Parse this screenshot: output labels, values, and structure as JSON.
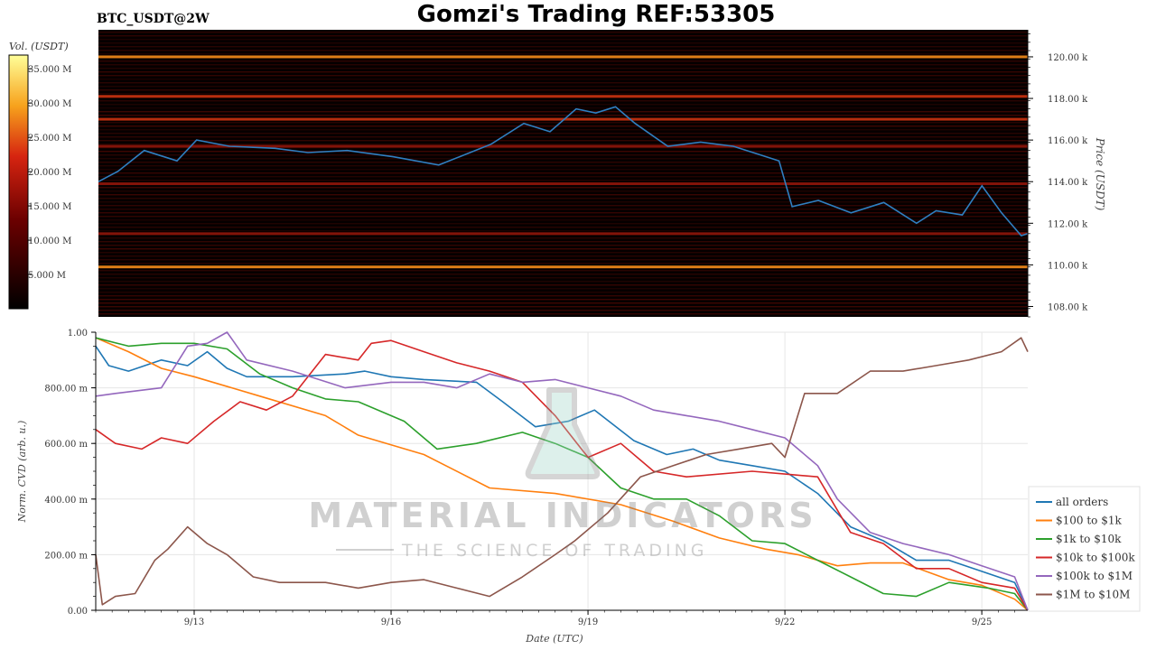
{
  "header": {
    "symbol": "BTC_USDT@2W",
    "title": "Gomzi's Trading REF:53305"
  },
  "colorbar": {
    "label": "Vol. (USDT)",
    "ticks": [
      "35.000 M",
      "30.000 M",
      "25.000 M",
      "20.000 M",
      "15.000 M",
      "10.000 M",
      "5.000 M"
    ],
    "tick_values": [
      35,
      30,
      25,
      20,
      15,
      10,
      5
    ],
    "range": [
      0,
      37
    ]
  },
  "watermark": {
    "line1": "MATERIAL INDICATORS",
    "line2": "THE SCIENCE OF TRADING"
  },
  "colors": {
    "price_line": "#2f7fc1",
    "heat_low": "#000000",
    "heat_mid": "#c1121f",
    "heat_high": "#ffff66"
  },
  "chart_data": [
    {
      "type": "heatmap",
      "title": "BTC_USDT@2W",
      "ylabel": "Price (USDT)",
      "y_ticks": [
        "120.00 k",
        "118.00 k",
        "116.00 k",
        "114.00 k",
        "112.00 k",
        "110.00 k",
        "108.00 k"
      ],
      "y_tick_values": [
        120000,
        118000,
        116000,
        114000,
        112000,
        110000,
        108000
      ],
      "ylim": [
        107500,
        121300
      ],
      "x_range": [
        "2025-09-11 12:00",
        "2025-09-25 18:00"
      ],
      "liquidity_bands": [
        {
          "price": 120000,
          "level": 0.75
        },
        {
          "price": 118100,
          "level": 0.45
        },
        {
          "price": 117000,
          "level": 0.35
        },
        {
          "price": 109900,
          "level": 0.65
        },
        {
          "price": 115700,
          "level": 0.25
        },
        {
          "price": 113900,
          "level": 0.2
        },
        {
          "price": 111500,
          "level": 0.22
        }
      ],
      "price_series": {
        "name": "price",
        "x": [
          0,
          0.3,
          0.7,
          1.2,
          1.5,
          2.0,
          2.7,
          3.2,
          3.8,
          4.5,
          5.2,
          6.0,
          6.5,
          6.9,
          7.3,
          7.6,
          7.9,
          8.2,
          8.7,
          9.2,
          9.7,
          10.1,
          10.4,
          10.6,
          11.0,
          11.5,
          12.0,
          12.5,
          12.8,
          13.2,
          13.5,
          13.8,
          14.1,
          14.2
        ],
        "y": [
          114000,
          114500,
          115500,
          115000,
          116000,
          115700,
          115600,
          115400,
          115500,
          115200,
          114800,
          115800,
          116800,
          116400,
          117500,
          117300,
          117600,
          116800,
          115700,
          115900,
          115700,
          115300,
          115000,
          112800,
          113100,
          112500,
          113000,
          112000,
          112600,
          112400,
          113800,
          112500,
          111400,
          111500
        ]
      }
    },
    {
      "type": "line",
      "xlabel": "Date (UTC)",
      "ylabel": "Norm. CVD (arb. u.)",
      "x_ticks": [
        "9/13",
        "9/16",
        "9/19",
        "9/22",
        "9/25"
      ],
      "x_tick_values": [
        1.5,
        4.5,
        7.5,
        10.5,
        13.5
      ],
      "xlim": [
        0,
        14.2
      ],
      "y_ticks": [
        "1.00",
        "800.00 m",
        "600.00 m",
        "400.00 m",
        "200.00 m",
        "0.00"
      ],
      "y_tick_values": [
        1.0,
        0.8,
        0.6,
        0.4,
        0.2,
        0.0
      ],
      "ylim": [
        0,
        1
      ],
      "legend_position": "bottom-right",
      "series": [
        {
          "name": "all orders",
          "color": "#1f77b4",
          "x": [
            0,
            0.2,
            0.5,
            1.0,
            1.4,
            1.7,
            2.0,
            2.3,
            3.0,
            3.8,
            4.1,
            4.5,
            5.0,
            5.8,
            6.2,
            6.7,
            7.2,
            7.6,
            8.2,
            8.7,
            9.1,
            9.5,
            10.0,
            10.5,
            11.0,
            11.5,
            12.0,
            12.5,
            13.0,
            13.5,
            14.0,
            14.2
          ],
          "y": [
            0.95,
            0.88,
            0.86,
            0.9,
            0.88,
            0.93,
            0.87,
            0.84,
            0.84,
            0.85,
            0.86,
            0.84,
            0.83,
            0.82,
            0.75,
            0.66,
            0.68,
            0.72,
            0.61,
            0.56,
            0.58,
            0.54,
            0.52,
            0.5,
            0.42,
            0.3,
            0.25,
            0.18,
            0.18,
            0.14,
            0.1,
            0.0
          ]
        },
        {
          "name": "$100 to $1k",
          "color": "#ff7f0e",
          "x": [
            0,
            0.5,
            1.0,
            1.5,
            2.5,
            3.5,
            4.0,
            5.0,
            6.0,
            7.0,
            8.0,
            8.8,
            9.5,
            10.2,
            10.7,
            11.3,
            11.8,
            12.3,
            13.0,
            13.5,
            14.0,
            14.2
          ],
          "y": [
            0.98,
            0.93,
            0.87,
            0.84,
            0.77,
            0.7,
            0.63,
            0.56,
            0.44,
            0.42,
            0.38,
            0.32,
            0.26,
            0.22,
            0.2,
            0.16,
            0.17,
            0.17,
            0.11,
            0.09,
            0.04,
            0.0
          ]
        },
        {
          "name": "$1k to $10k",
          "color": "#2ca02c",
          "x": [
            0,
            0.5,
            1.0,
            1.5,
            2.0,
            2.5,
            3.0,
            3.5,
            4.0,
            4.7,
            5.2,
            5.8,
            6.5,
            7.0,
            7.5,
            8.0,
            8.5,
            9.0,
            9.5,
            10.0,
            10.5,
            11.0,
            11.5,
            12.0,
            12.5,
            13.0,
            13.6,
            14.0,
            14.2
          ],
          "y": [
            0.98,
            0.95,
            0.96,
            0.96,
            0.94,
            0.85,
            0.8,
            0.76,
            0.75,
            0.68,
            0.58,
            0.6,
            0.64,
            0.6,
            0.55,
            0.44,
            0.4,
            0.4,
            0.34,
            0.25,
            0.24,
            0.18,
            0.12,
            0.06,
            0.05,
            0.1,
            0.08,
            0.06,
            0.0
          ]
        },
        {
          "name": "$10k to $100k",
          "color": "#d62728",
          "x": [
            0,
            0.3,
            0.7,
            1.0,
            1.4,
            1.8,
            2.2,
            2.6,
            3.0,
            3.5,
            4.0,
            4.2,
            4.5,
            5.0,
            5.5,
            6.0,
            6.5,
            7.0,
            7.5,
            8.0,
            8.5,
            9.0,
            10.0,
            10.5,
            11.0,
            11.5,
            12.0,
            12.5,
            13.0,
            13.5,
            14.0,
            14.2
          ],
          "y": [
            0.65,
            0.6,
            0.58,
            0.62,
            0.6,
            0.68,
            0.75,
            0.72,
            0.77,
            0.92,
            0.9,
            0.96,
            0.97,
            0.93,
            0.89,
            0.86,
            0.82,
            0.7,
            0.55,
            0.6,
            0.5,
            0.48,
            0.5,
            0.49,
            0.48,
            0.28,
            0.24,
            0.15,
            0.15,
            0.1,
            0.08,
            0.0
          ]
        },
        {
          "name": "$100k to $1M",
          "color": "#9467bd",
          "x": [
            0,
            0.3,
            1.0,
            1.4,
            1.7,
            2.0,
            2.3,
            3.0,
            3.8,
            4.5,
            5.0,
            5.5,
            6.0,
            6.5,
            7.0,
            7.5,
            8.0,
            8.5,
            9.0,
            9.5,
            10.0,
            10.5,
            11.0,
            11.3,
            11.8,
            12.3,
            13.0,
            13.5,
            14.0,
            14.2
          ],
          "y": [
            0.77,
            0.78,
            0.8,
            0.95,
            0.96,
            1.0,
            0.9,
            0.86,
            0.8,
            0.82,
            0.82,
            0.8,
            0.85,
            0.82,
            0.83,
            0.8,
            0.77,
            0.72,
            0.7,
            0.68,
            0.65,
            0.62,
            0.52,
            0.4,
            0.28,
            0.24,
            0.2,
            0.16,
            0.12,
            0.0
          ]
        },
        {
          "name": "$1M to $10M",
          "color": "#8c564b",
          "x": [
            0,
            0.1,
            0.3,
            0.6,
            0.9,
            1.1,
            1.4,
            1.7,
            2.0,
            2.4,
            2.8,
            3.5,
            4.0,
            4.5,
            5.0,
            5.5,
            6.0,
            6.5,
            7.0,
            7.3,
            7.8,
            8.3,
            8.8,
            9.3,
            9.8,
            10.3,
            10.5,
            10.8,
            11.3,
            11.8,
            12.3,
            12.8,
            13.3,
            13.8,
            14.1,
            14.2
          ],
          "y": [
            0.2,
            0.02,
            0.05,
            0.06,
            0.18,
            0.22,
            0.3,
            0.24,
            0.2,
            0.12,
            0.1,
            0.1,
            0.08,
            0.1,
            0.11,
            0.08,
            0.05,
            0.12,
            0.2,
            0.25,
            0.35,
            0.48,
            0.52,
            0.56,
            0.58,
            0.6,
            0.55,
            0.78,
            0.78,
            0.86,
            0.86,
            0.88,
            0.9,
            0.93,
            0.98,
            0.93
          ]
        }
      ]
    }
  ]
}
